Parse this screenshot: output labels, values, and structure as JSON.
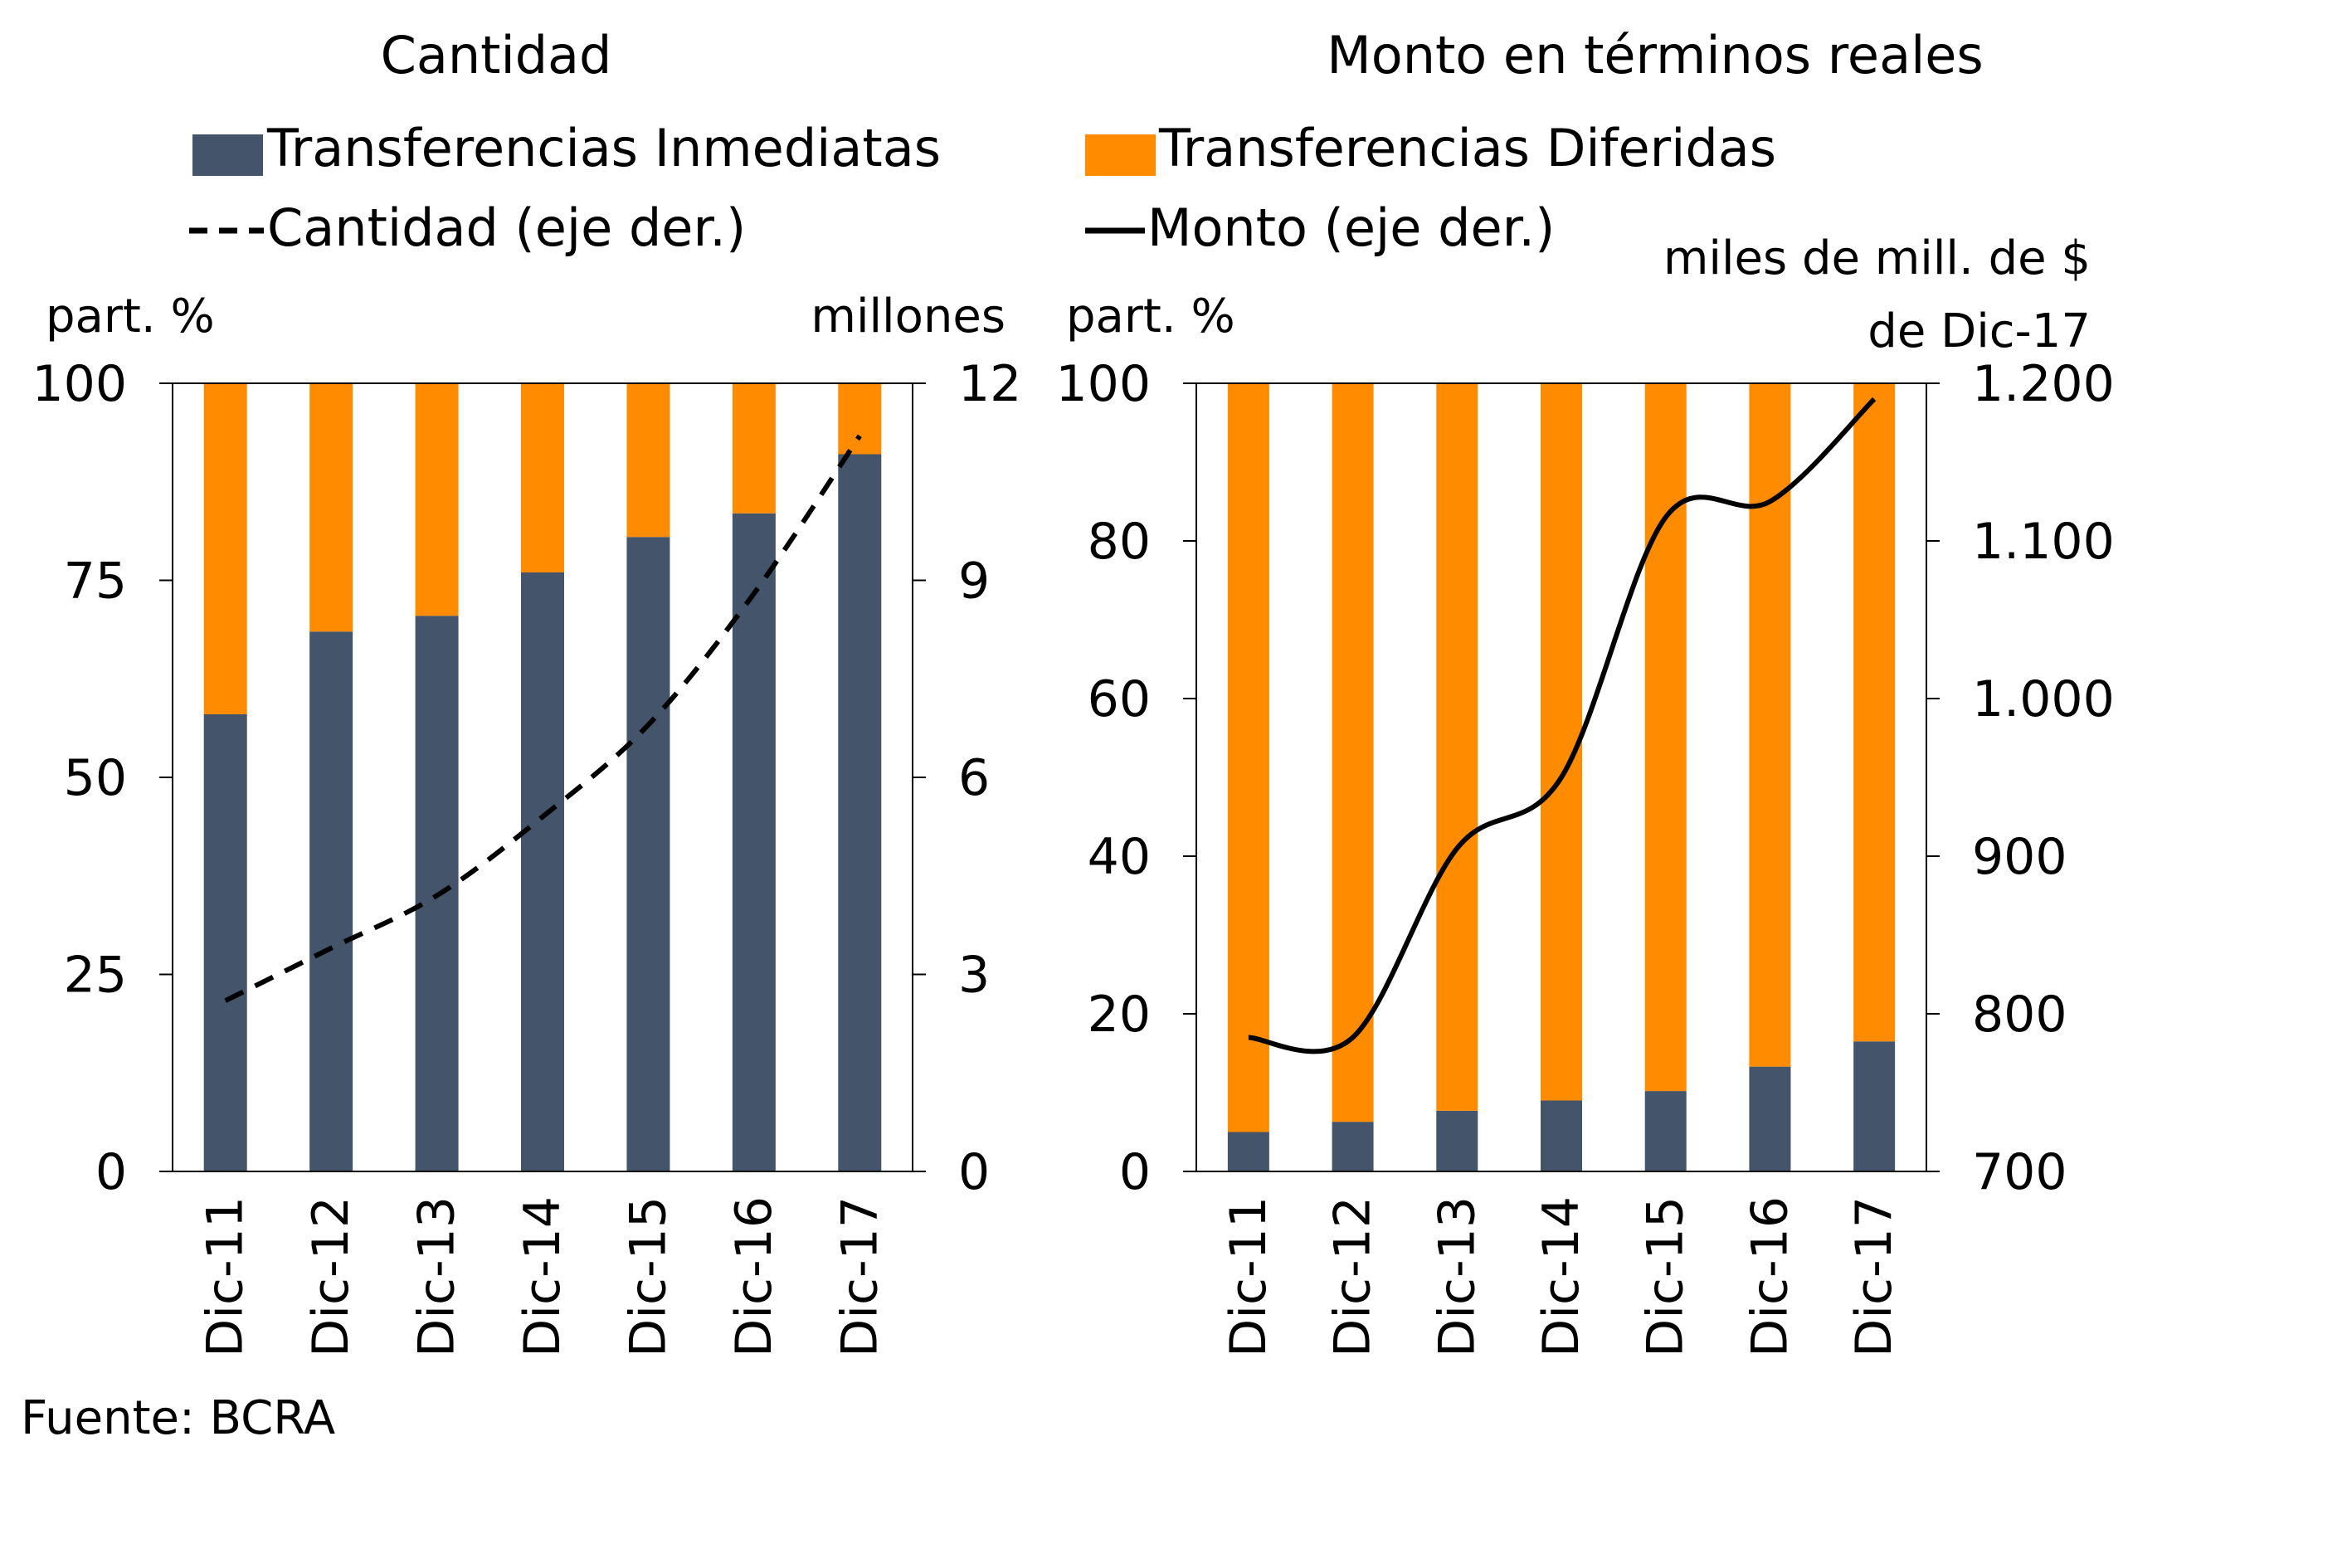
{
  "source": "Fuente: BCRA",
  "legend": {
    "inmediatas": "Transferencias Inmediatas",
    "diferidas": "Transferencias Diferidas",
    "cantidad": "Cantidad (eje der.)",
    "monto": "Monto (eje der.)"
  },
  "colors": {
    "inmediatas": "#44546A",
    "diferidas": "#FF8C00",
    "cantidad_line": "#000000",
    "monto_line": "#000000"
  },
  "chart_data": [
    {
      "type": "bar",
      "stacked": true,
      "title": "Cantidad",
      "ylabel_left": "part. %",
      "ylabel_right": "millones",
      "categories": [
        "Dic-11",
        "Dic-12",
        "Dic-13",
        "Dic-14",
        "Dic-15",
        "Dic-16",
        "Dic-17"
      ],
      "ylim": [
        0,
        100
      ],
      "yticks": [
        "0",
        "25",
        "50",
        "75",
        "100"
      ],
      "y2lim": [
        0,
        12
      ],
      "y2ticks": [
        "0",
        "3",
        "6",
        "9",
        "12"
      ],
      "series": [
        {
          "name": "Transferencias Inmediatas",
          "values": [
            58,
            68.5,
            70.5,
            76,
            80.5,
            83.5,
            91
          ]
        },
        {
          "name": "Transferencias Diferidas",
          "values": [
            42,
            31.5,
            29.5,
            24,
            19.5,
            16.5,
            9
          ]
        }
      ],
      "line": {
        "name": "Cantidad (eje der.)",
        "axis": "right",
        "style": "dashed",
        "values": [
          2.6,
          3.4,
          4.2,
          5.4,
          6.8,
          8.8,
          11.2
        ]
      }
    },
    {
      "type": "bar",
      "stacked": true,
      "title": "Monto en términos reales",
      "ylabel_left": "part. %",
      "ylabel_right_line1": "miles de mill. de $",
      "ylabel_right_line2": "de Dic-17",
      "categories": [
        "Dic-11",
        "Dic-12",
        "Dic-13",
        "Dic-14",
        "Dic-15",
        "Dic-16",
        "Dic-17"
      ],
      "ylim": [
        0,
        100
      ],
      "yticks": [
        "0",
        "20",
        "40",
        "60",
        "80",
        "100"
      ],
      "y2lim": [
        700,
        1200
      ],
      "y2ticks": [
        "700",
        "800",
        "900",
        "1.000",
        "1.100",
        "1.200"
      ],
      "series": [
        {
          "name": "Transferencias Inmediatas",
          "values": [
            5,
            6.3,
            7.7,
            9,
            10.2,
            13.3,
            16.5
          ]
        },
        {
          "name": "Transferencias Diferidas",
          "values": [
            95,
            93.7,
            92.3,
            91,
            89.8,
            86.7,
            83.5
          ]
        }
      ],
      "line": {
        "name": "Monto (eje der.)",
        "axis": "right",
        "style": "solid",
        "values": [
          785,
          785,
          905,
          950,
          1115,
          1125,
          1190
        ]
      }
    }
  ]
}
